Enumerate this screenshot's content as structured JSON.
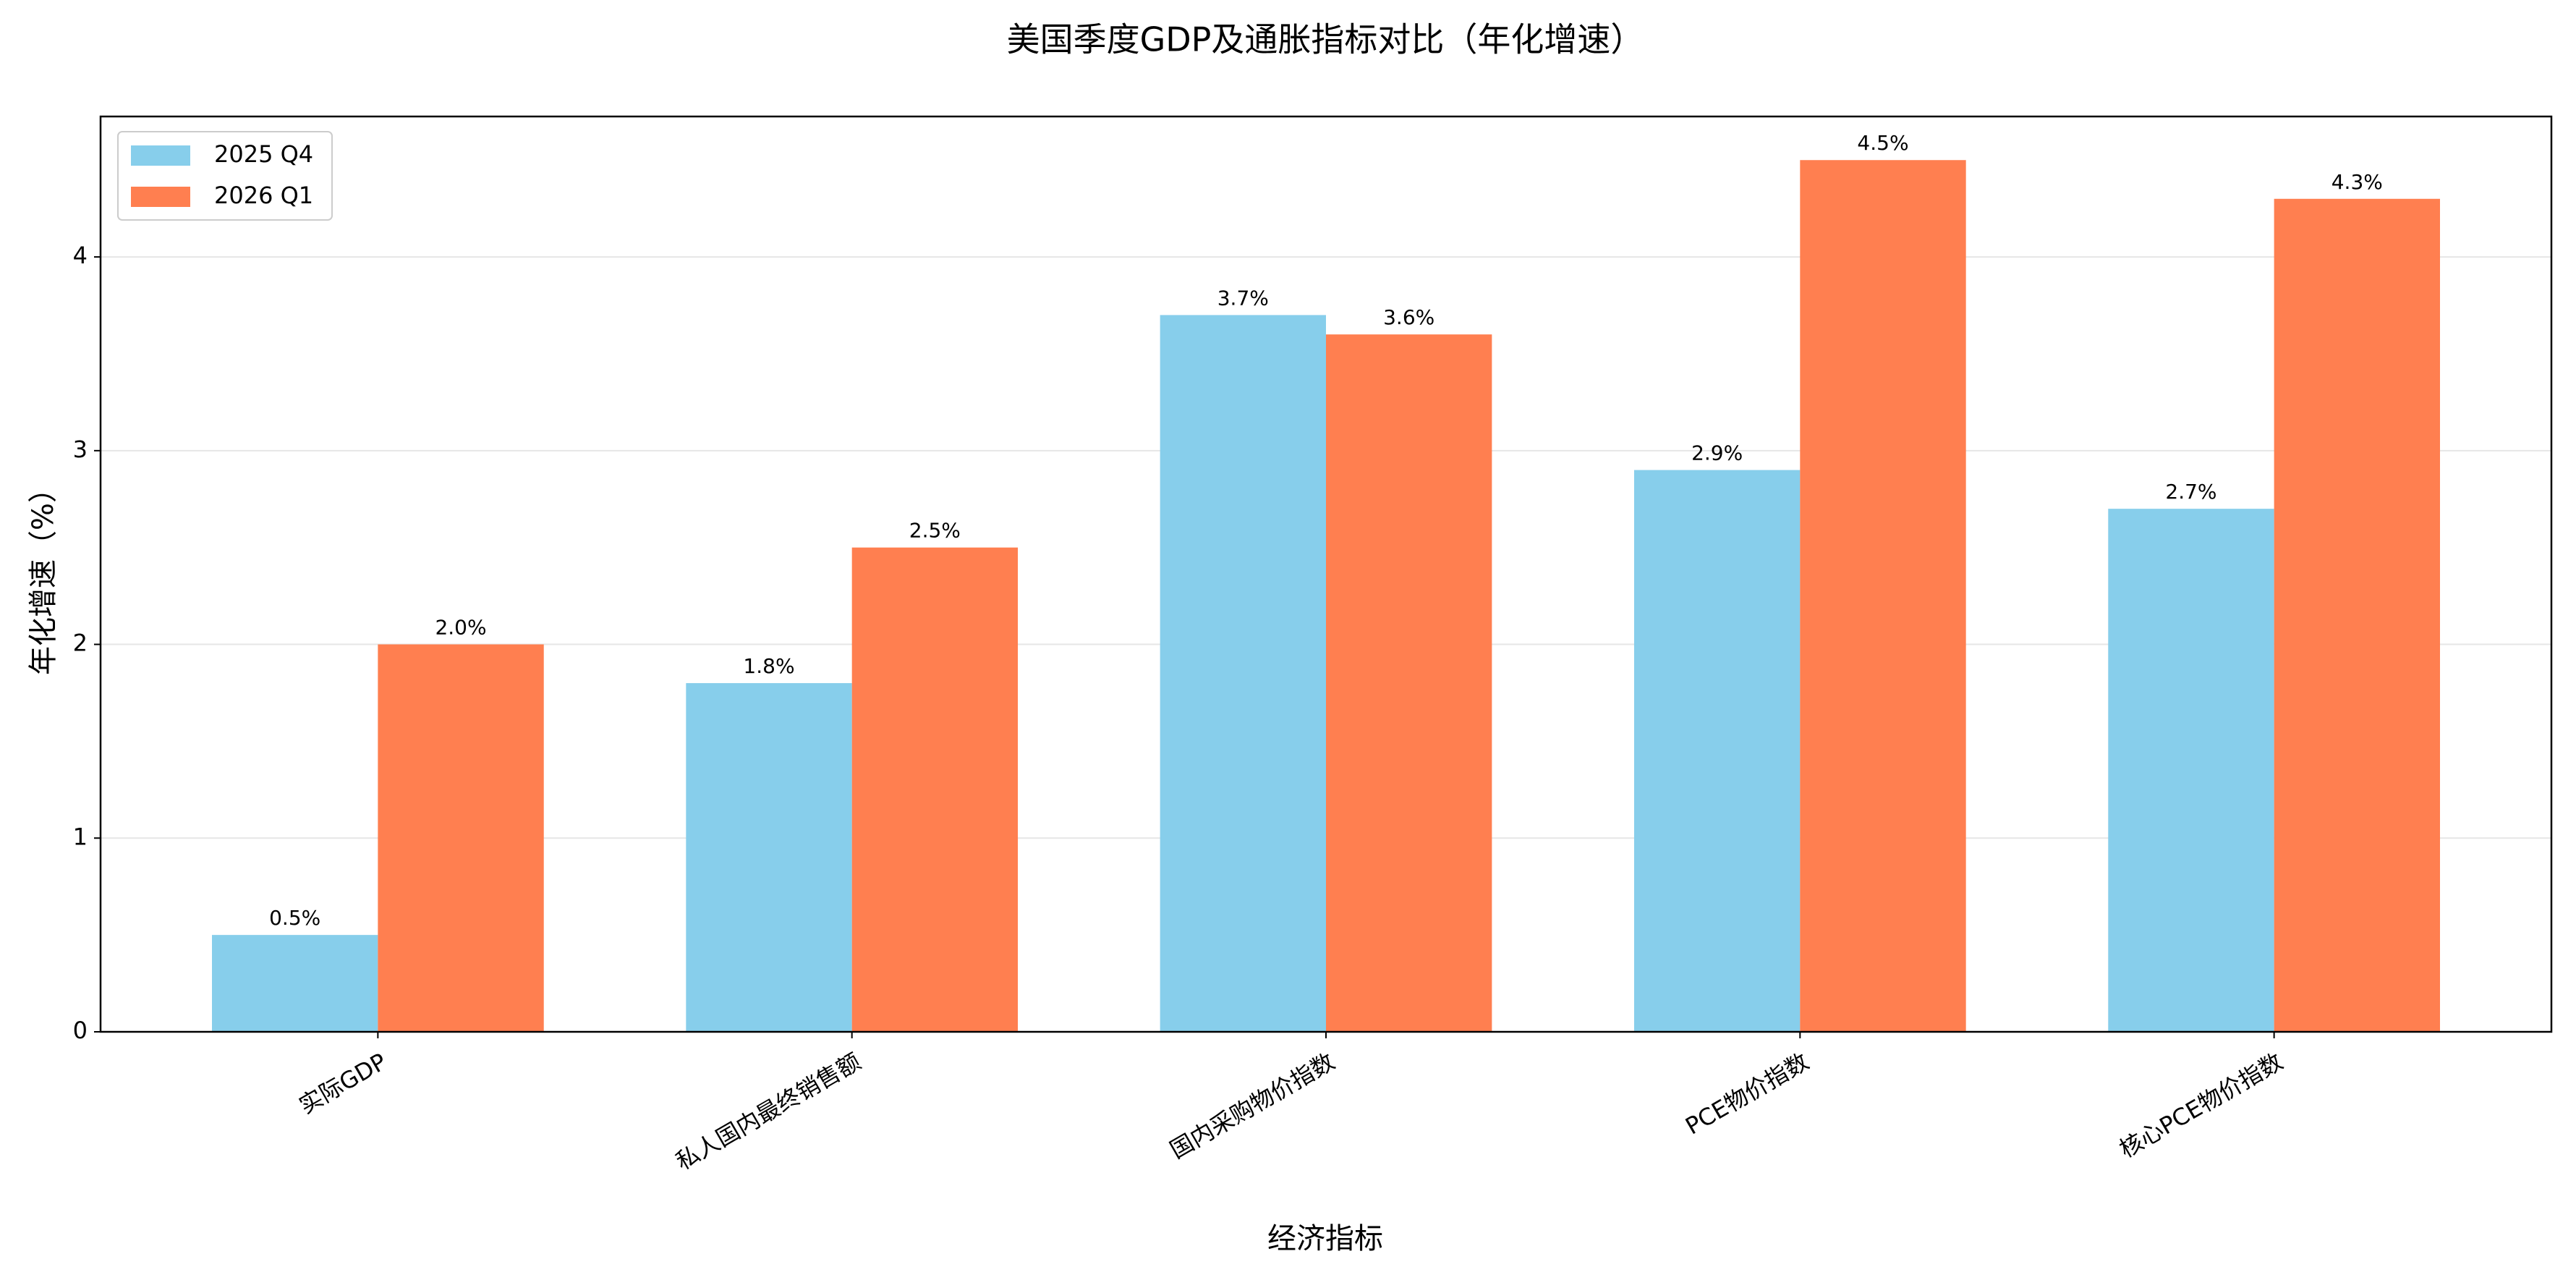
{
  "chart_data": {
    "type": "bar",
    "title": "美国季度GDP及通胀指标对比（年化增速）",
    "x_label": "经济指标",
    "y_label": "年化增速（%）",
    "categories": [
      "实际GDP",
      "私人国内最终销售额",
      "国内采购物价指数",
      "PCE物价指数",
      "核心PCE物价指数"
    ],
    "series": [
      {
        "name": "2025 Q4",
        "color": "#87ceeb",
        "values": [
          0.5,
          1.8,
          3.7,
          2.9,
          2.7
        ],
        "value_labels": [
          "0.5%",
          "1.8%",
          "3.7%",
          "2.9%",
          "2.7%"
        ]
      },
      {
        "name": "2026 Q1",
        "color": "#ff7f50",
        "values": [
          2.0,
          2.5,
          3.6,
          4.5,
          4.3
        ],
        "value_labels": [
          "2.0%",
          "2.5%",
          "3.6%",
          "4.5%",
          "4.3%"
        ]
      }
    ],
    "ylim": [
      0,
      4.725
    ],
    "yticks": [
      0,
      1,
      2,
      3,
      4
    ],
    "grid": true,
    "legend": "upper-left"
  }
}
